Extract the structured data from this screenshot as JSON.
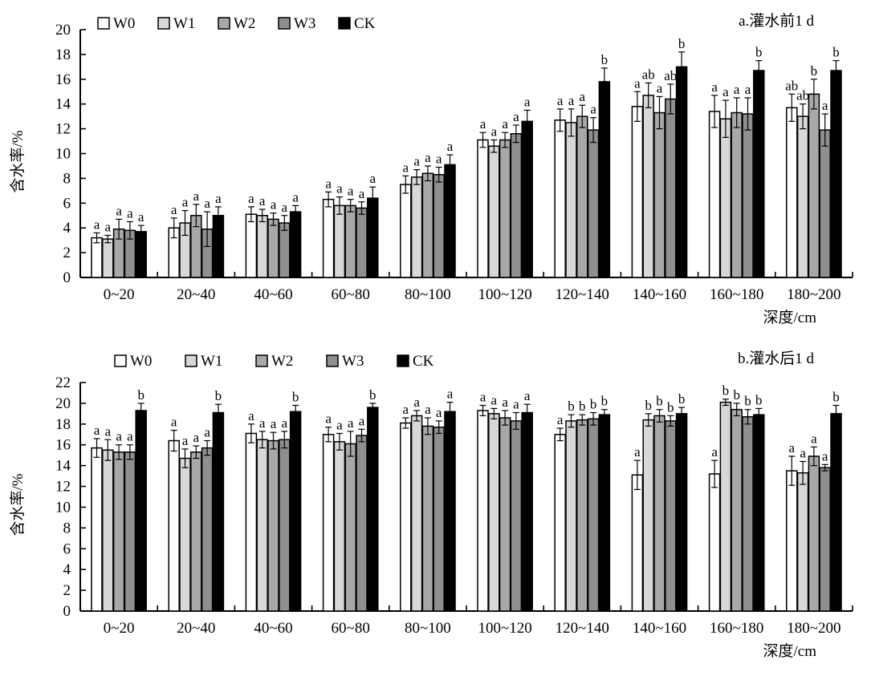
{
  "figure": {
    "axis_color": "#000000",
    "background": "#ffffff"
  },
  "chart_data": [
    {
      "type": "bar",
      "title": "a.灌水前1 d",
      "xlabel": "深度/cm",
      "ylabel": "含水率/%",
      "ylim": [
        0,
        20
      ],
      "ytick_step": 2,
      "grid": false,
      "legend_position": "top-inside",
      "legend_labels": [
        "W0",
        "W1",
        "W2",
        "W3",
        "CK"
      ],
      "categories": [
        "0~20",
        "20~40",
        "40~60",
        "60~80",
        "80~100",
        "100~120",
        "120~140",
        "140~160",
        "160~180",
        "180~200"
      ],
      "series": [
        {
          "name": "W0",
          "color": "#ffffff",
          "values": [
            3.2,
            4.0,
            5.1,
            6.3,
            7.5,
            11.1,
            12.7,
            13.8,
            13.4,
            13.7
          ],
          "errors": [
            0.4,
            0.8,
            0.6,
            0.6,
            0.7,
            0.6,
            0.9,
            1.2,
            1.3,
            1.1
          ],
          "letters": [
            "a",
            "a",
            "a",
            "a",
            "a",
            "a",
            "a",
            "a",
            "a",
            "ab"
          ]
        },
        {
          "name": "W1",
          "color": "#d8d8d8",
          "values": [
            3.1,
            4.4,
            5.0,
            5.8,
            8.1,
            10.6,
            12.5,
            14.7,
            12.8,
            13.0
          ],
          "errors": [
            0.3,
            1.0,
            0.5,
            0.7,
            0.6,
            0.5,
            1.1,
            1.0,
            1.5,
            1.0
          ],
          "letters": [
            "a",
            "a",
            "a",
            "a",
            "a",
            "a",
            "a",
            "ab",
            "a",
            "ab"
          ]
        },
        {
          "name": "W2",
          "color": "#a8a8a8",
          "values": [
            3.9,
            5.0,
            4.7,
            5.8,
            8.4,
            11.1,
            13.0,
            13.3,
            13.3,
            14.8
          ],
          "errors": [
            0.8,
            0.9,
            0.5,
            0.5,
            0.6,
            0.6,
            0.9,
            1.3,
            1.2,
            1.2
          ],
          "letters": [
            "a",
            "a",
            "a",
            "a",
            "a",
            "a",
            "a",
            "a",
            "a",
            "b"
          ]
        },
        {
          "name": "W3",
          "color": "#8f8f8f",
          "values": [
            3.8,
            3.9,
            4.4,
            5.6,
            8.3,
            11.6,
            11.9,
            14.4,
            13.2,
            11.9
          ],
          "errors": [
            0.7,
            1.4,
            0.6,
            0.5,
            0.6,
            0.7,
            1.0,
            1.2,
            1.3,
            1.3
          ],
          "letters": [
            "a",
            "a",
            "a",
            "a",
            "a",
            "a",
            "a",
            "ab",
            "a",
            "a"
          ]
        },
        {
          "name": "CK",
          "color": "#000000",
          "values": [
            3.7,
            5.0,
            5.3,
            6.4,
            9.1,
            12.6,
            15.8,
            17.0,
            16.7,
            16.7
          ],
          "errors": [
            0.5,
            0.7,
            0.5,
            0.9,
            0.8,
            0.9,
            1.1,
            1.2,
            0.8,
            0.8
          ],
          "letters": [
            "a",
            "a",
            "a",
            "a",
            "a",
            "a",
            "b",
            "b",
            "b",
            "b"
          ]
        }
      ]
    },
    {
      "type": "bar",
      "title": "b.灌水后1 d",
      "xlabel": "深度/cm",
      "ylabel": "含水率/%",
      "ylim": [
        0,
        22
      ],
      "ytick_step": 2,
      "grid": false,
      "legend_position": "top-inside",
      "legend_labels": [
        "W0",
        "W1",
        "W2",
        "W3",
        "CK"
      ],
      "categories": [
        "0~20",
        "20~40",
        "40~60",
        "60~80",
        "80~100",
        "100~120",
        "120~140",
        "140~160",
        "160~180",
        "180~200"
      ],
      "series": [
        {
          "name": "W0",
          "color": "#ffffff",
          "values": [
            15.7,
            16.4,
            17.1,
            17.0,
            18.1,
            19.3,
            17.0,
            13.1,
            13.2,
            13.5
          ],
          "errors": [
            0.9,
            1.0,
            0.9,
            0.7,
            0.5,
            0.5,
            0.6,
            1.4,
            1.3,
            1.4
          ],
          "letters": [
            "a",
            "a",
            "a",
            "a",
            "a",
            "a",
            "a",
            "a",
            "a",
            "a"
          ]
        },
        {
          "name": "W1",
          "color": "#d8d8d8",
          "values": [
            15.5,
            14.7,
            16.5,
            16.3,
            18.8,
            19.0,
            18.3,
            18.4,
            20.1,
            13.3
          ],
          "errors": [
            1.0,
            0.9,
            0.8,
            0.8,
            0.5,
            0.5,
            0.6,
            0.6,
            0.3,
            1.1
          ],
          "letters": [
            "a",
            "a",
            "a",
            "a",
            "a",
            "a",
            "b",
            "b",
            "b",
            "a"
          ]
        },
        {
          "name": "W2",
          "color": "#a8a8a8",
          "values": [
            15.3,
            15.3,
            16.4,
            16.1,
            17.8,
            18.6,
            18.4,
            18.8,
            19.4,
            14.9
          ],
          "errors": [
            0.7,
            0.6,
            0.8,
            1.2,
            0.8,
            0.7,
            0.5,
            0.6,
            0.6,
            0.9
          ],
          "letters": [
            "a",
            "a",
            "a",
            "a",
            "a",
            "a",
            "b",
            "b",
            "b",
            "a"
          ]
        },
        {
          "name": "W3",
          "color": "#8f8f8f",
          "values": [
            15.3,
            15.7,
            16.5,
            16.9,
            17.7,
            18.3,
            18.5,
            18.3,
            18.7,
            13.8
          ],
          "errors": [
            0.7,
            0.7,
            0.8,
            0.6,
            0.6,
            0.8,
            0.6,
            0.5,
            0.7,
            0.3
          ],
          "letters": [
            "a",
            "a",
            "a",
            "a",
            "a",
            "a",
            "b",
            "b",
            "b",
            "a"
          ]
        },
        {
          "name": "CK",
          "color": "#000000",
          "values": [
            19.3,
            19.1,
            19.2,
            19.6,
            19.2,
            19.1,
            18.9,
            19.0,
            18.9,
            19.0
          ],
          "errors": [
            0.7,
            0.8,
            0.6,
            0.4,
            0.9,
            0.8,
            0.5,
            0.6,
            0.6,
            0.8
          ],
          "letters": [
            "b",
            "b",
            "b",
            "b",
            "a",
            "a",
            "b",
            "b",
            "b",
            "b"
          ]
        }
      ]
    }
  ]
}
